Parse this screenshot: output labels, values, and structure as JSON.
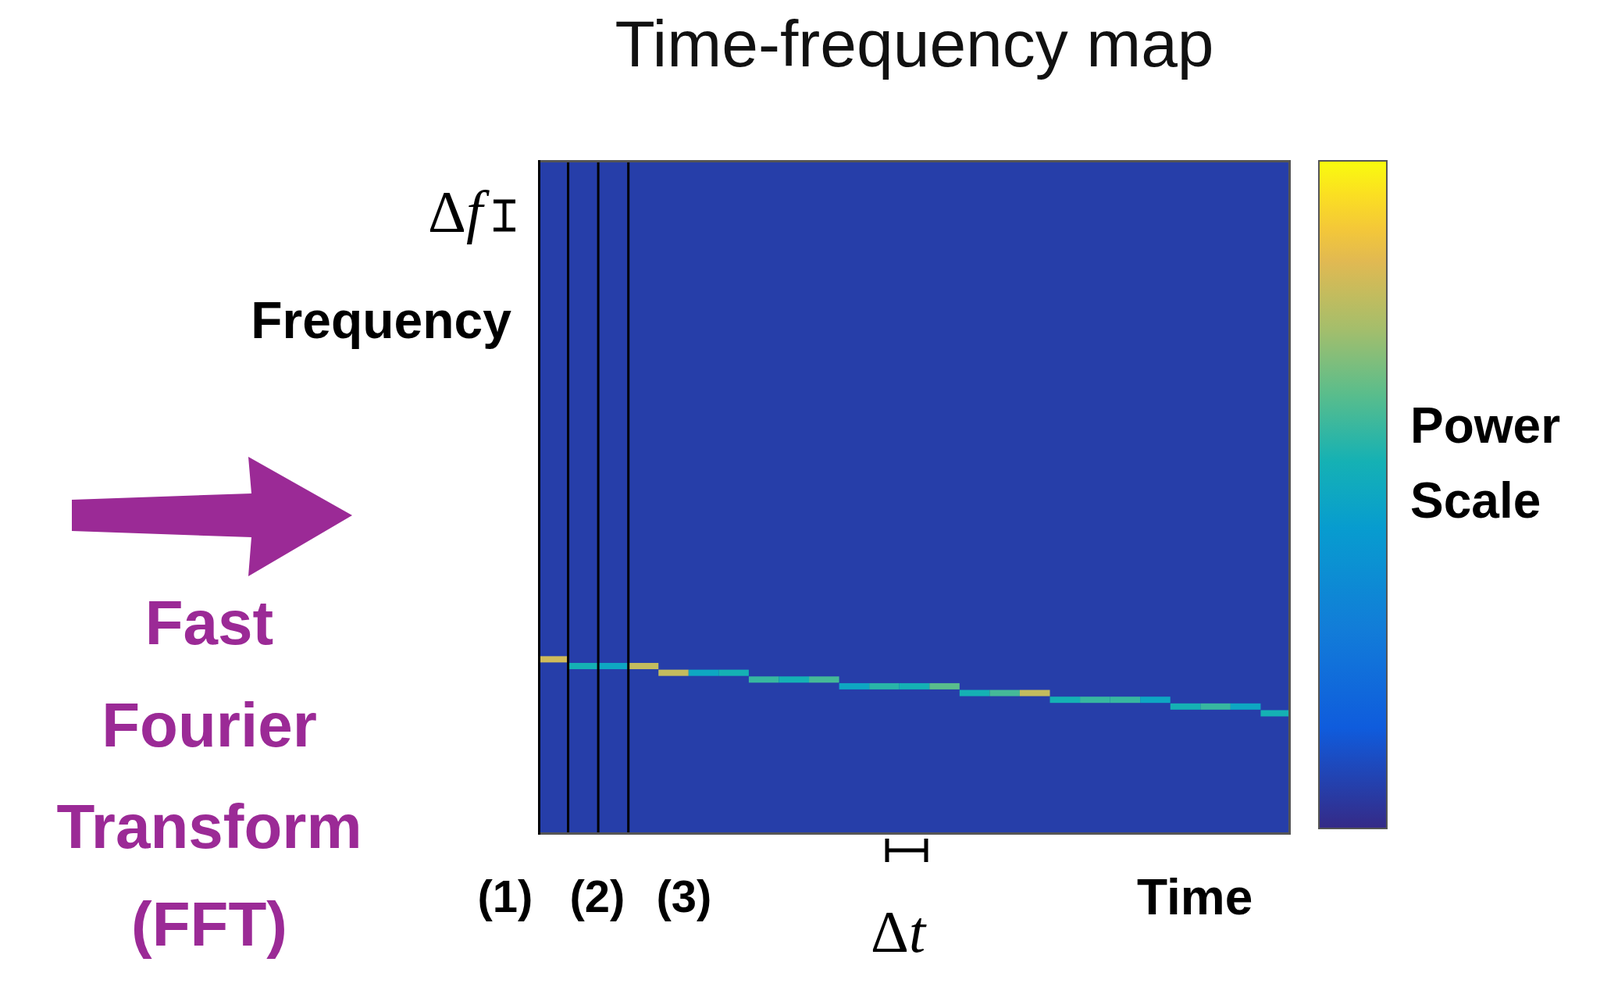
{
  "chart_data": {
    "type": "heatmap",
    "title": "Time-frequency map",
    "x_label": "Time",
    "y_label": "Frequency",
    "tick_labels": false,
    "xlim": [
      0,
      25
    ],
    "ylim": [
      0,
      100
    ],
    "x": [
      0.5,
      1.5,
      2.5,
      3.5,
      4.5,
      5.5,
      6.5,
      7.5,
      8.5,
      9.5,
      10.5,
      11.5,
      12.5,
      13.5,
      14.5,
      15.5,
      16.5,
      17.5,
      18.5,
      19.5,
      20.5,
      21.5,
      22.5,
      23.5,
      24.5
    ],
    "values": [
      26,
      25,
      25,
      25,
      24,
      24,
      24,
      23,
      23,
      23,
      22,
      22,
      22,
      22,
      21,
      21,
      21,
      20,
      20,
      20,
      20,
      19,
      19,
      19,
      18
    ],
    "power": [
      0.82,
      0.55,
      0.5,
      0.8,
      0.8,
      0.5,
      0.55,
      0.6,
      0.55,
      0.62,
      0.5,
      0.58,
      0.55,
      0.65,
      0.55,
      0.62,
      0.8,
      0.55,
      0.6,
      0.6,
      0.5,
      0.55,
      0.6,
      0.5,
      0.55
    ],
    "background_power": 0.06,
    "colorbar": {
      "label": "Power Scale",
      "range": [
        0,
        1
      ]
    },
    "windows": {
      "edges": [
        1,
        2,
        3
      ],
      "labels": [
        "(1)",
        "(2)",
        "(3)"
      ]
    },
    "annotations": {
      "transform": "Fast Fourier Transform (FFT)",
      "delta_f": "Δf",
      "delta_t": "Δt"
    }
  }
}
